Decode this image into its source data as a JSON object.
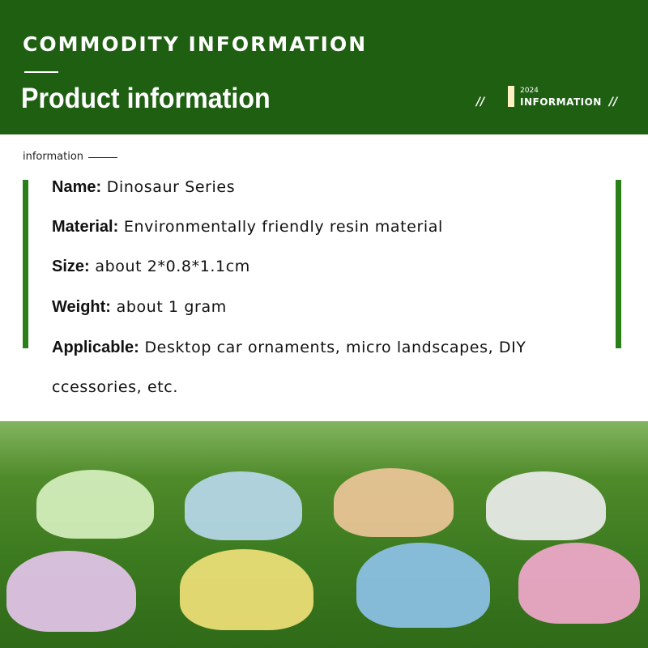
{
  "header": {
    "top_title": "COMMODITY INFORMATION",
    "main_title": "Product information",
    "badge_year": "2024",
    "badge_text": "INFORMATION",
    "slash": "//"
  },
  "section_label": "information",
  "details": [
    {
      "label": "Name:",
      "value": "Dinosaur Series"
    },
    {
      "label": "Material:",
      "value": "Environmentally friendly resin material"
    },
    {
      "label": "Size:",
      "value": "about 2*0.8*1.1cm"
    },
    {
      "label": "Weight:",
      "value": "about 1 gram"
    },
    {
      "label": "Applicable:",
      "value": "Desktop car ornaments, micro landscapes, DIY"
    }
  ],
  "details_continuation": "ccessories, etc.",
  "colors": {
    "header_green": "#1f5f12",
    "accent_green": "#2a7f19"
  },
  "photo": {
    "dinosaur_colors": [
      "#d9f2c2",
      "#b9d9ef",
      "#f0c79a",
      "#eeeef0",
      "#e8c6ef",
      "#f3e27a",
      "#8fc3ec",
      "#f5a8cf"
    ]
  }
}
